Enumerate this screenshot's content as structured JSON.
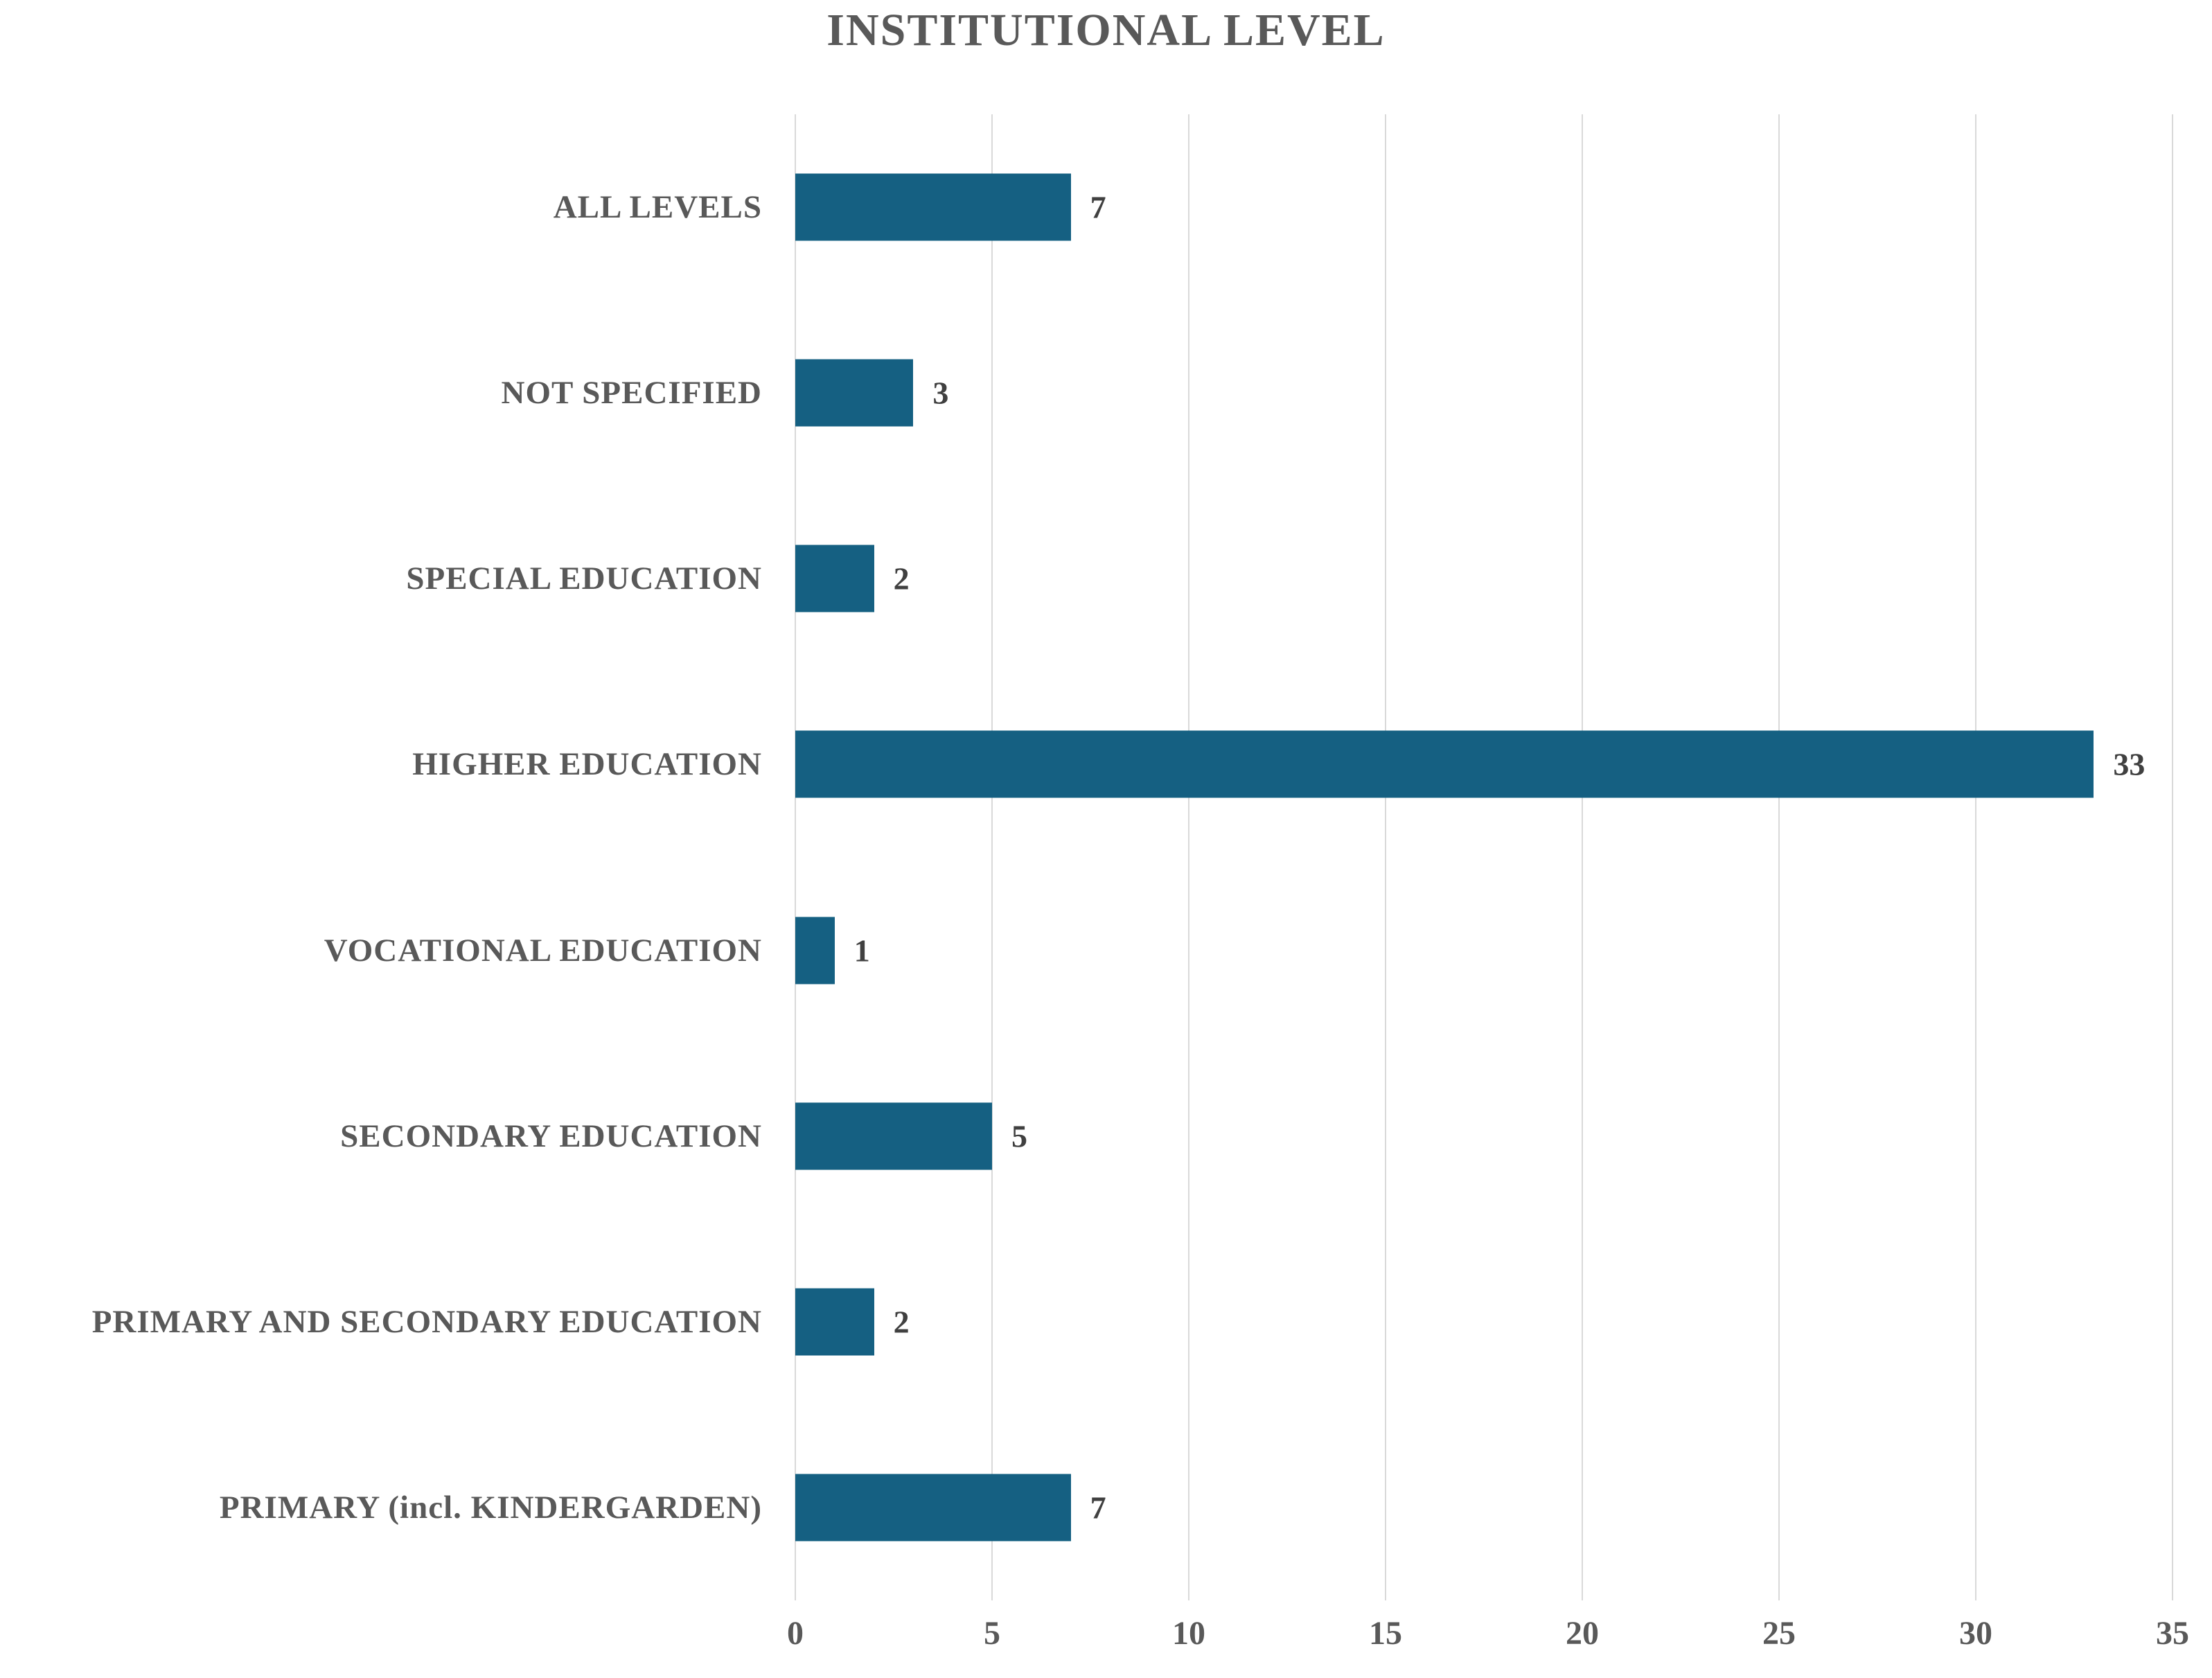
{
  "chart_data": {
    "type": "bar",
    "orientation": "horizontal",
    "title": "INSTITUTIONAL LEVEL",
    "categories": [
      "ALL LEVELS",
      "NOT SPECIFIED",
      "SPECIAL EDUCATION",
      "HIGHER EDUCATION",
      "VOCATIONAL EDUCATION",
      "SECONDARY EDUCATION",
      "PRIMARY AND SECONDARY EDUCATION",
      "PRIMARY (incl. KINDERGARDEN)"
    ],
    "values": [
      7,
      3,
      2,
      33,
      1,
      5,
      2,
      7
    ],
    "data_labels": [
      "7",
      "3",
      "2",
      "33",
      "1",
      "5",
      "2",
      "7"
    ],
    "xlabel": "",
    "ylabel": "",
    "xlim": [
      0,
      35
    ],
    "x_ticks": [
      "0",
      "5",
      "10",
      "15",
      "20",
      "25",
      "30",
      "35"
    ],
    "grid": true,
    "legend": "none",
    "colors": {
      "bar": "#156082",
      "title": "#595959",
      "labels": "#595959",
      "value_labels": "#404040",
      "gridlines": "#d9d9d9",
      "background": "#ffffff"
    }
  }
}
